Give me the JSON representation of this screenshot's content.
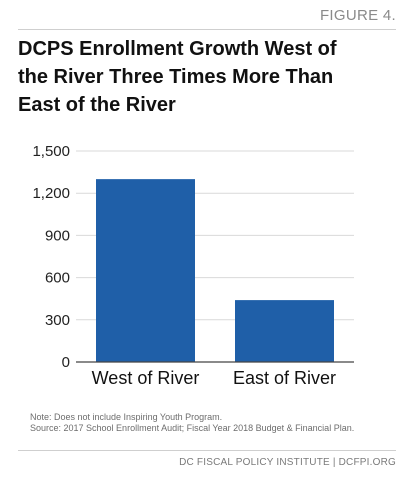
{
  "header": {
    "figure_label": "FIGURE 4."
  },
  "chart_data": {
    "type": "bar",
    "title_lines": [
      "DCPS Enrollment Growth West of",
      "the River Three Times More Than",
      "East of the River"
    ],
    "categories": [
      "West of River",
      "East of River"
    ],
    "values": [
      1300,
      440
    ],
    "ylim": [
      0,
      1500
    ],
    "yticks": [
      0,
      300,
      600,
      900,
      1200,
      1500
    ],
    "ytick_labels": [
      "0",
      "300",
      "600",
      "900",
      "1,200",
      "1,500"
    ],
    "bar_color": "#1f5fa8",
    "grid": true,
    "xlabel": "",
    "ylabel": ""
  },
  "notes": {
    "note": "Note: Does not include Inspiring Youth Program.",
    "source": "Source: 2017 School Enrollment Audit; Fiscal Year 2018 Budget & Financial Plan."
  },
  "footer": {
    "credit": "DC FISCAL POLICY INSTITUTE | DCFPI.ORG"
  }
}
